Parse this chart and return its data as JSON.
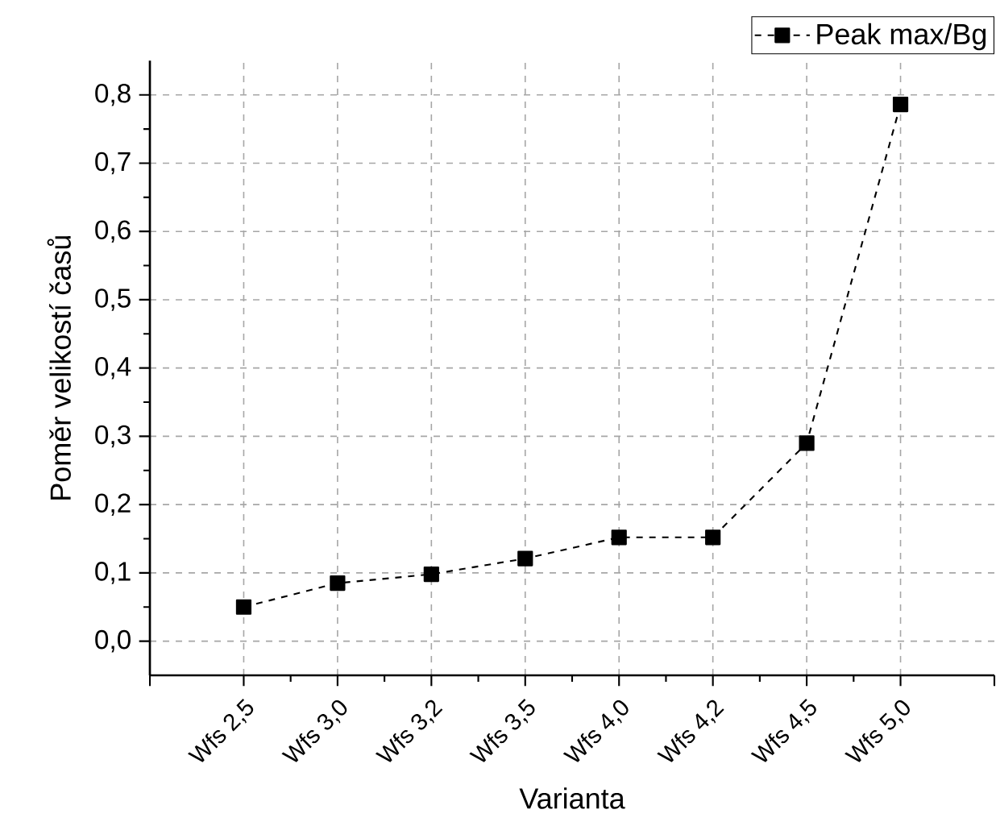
{
  "chart_data": {
    "type": "line",
    "xlabel": "Varianta",
    "ylabel": "Poměr velikostí časů",
    "categories": [
      "Wfs 2,5",
      "Wfs 3,0",
      "Wfs 3,2",
      "Wfs 3,5",
      "Wfs 4,0",
      "Wfs 4,2",
      "Wfs 4,5",
      "Wfs 5,0"
    ],
    "series": [
      {
        "name": "Peak max/Bg",
        "color": "#000000",
        "values": [
          0.05,
          0.085,
          0.098,
          0.121,
          0.152,
          0.152,
          0.29,
          0.786
        ]
      }
    ],
    "ylim": [
      -0.05,
      0.85
    ],
    "yticks": [
      {
        "value": 0,
        "label": "0,0"
      },
      {
        "value": 0.1,
        "label": "0,1"
      },
      {
        "value": 0.2,
        "label": "0,2"
      },
      {
        "value": 0.3,
        "label": "0,3"
      },
      {
        "value": 0.4,
        "label": "0,4"
      },
      {
        "value": 0.5,
        "label": "0,5"
      },
      {
        "value": 0.6,
        "label": "0,6"
      },
      {
        "value": 0.7,
        "label": "0,7"
      },
      {
        "value": 0.8,
        "label": "0,8"
      }
    ],
    "grid": true,
    "legend": "top right",
    "marker": "square",
    "line_style": "dashed"
  }
}
